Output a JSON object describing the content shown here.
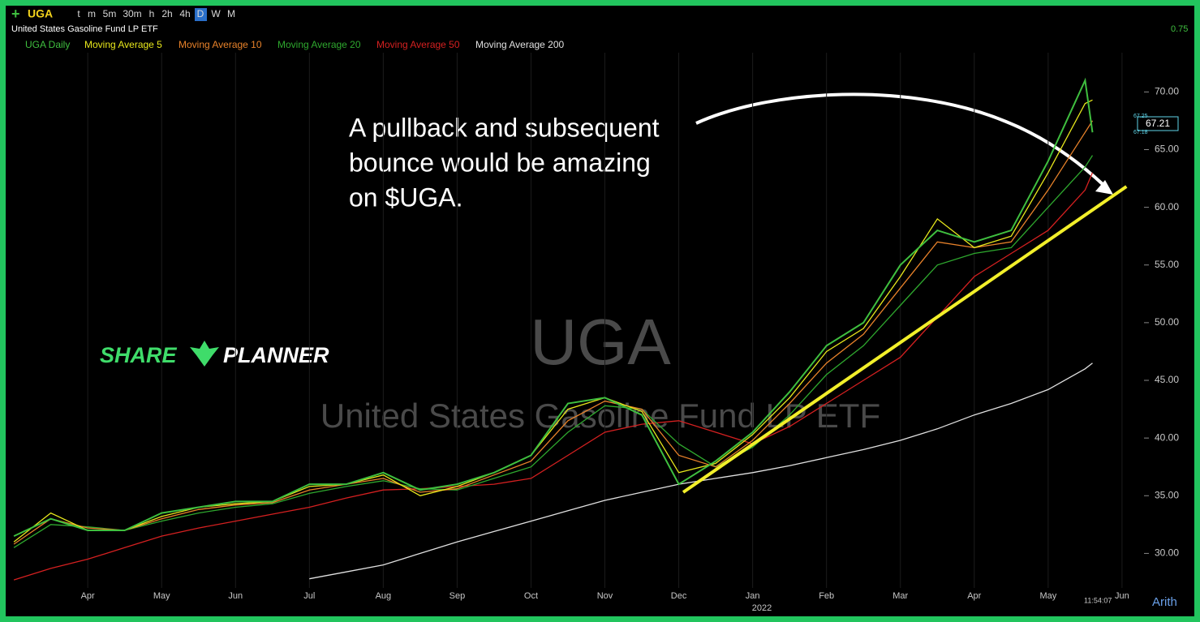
{
  "header": {
    "symbol": "UGA",
    "intervals": [
      "t",
      "m",
      "5m",
      "30m",
      "h",
      "2h",
      "4h",
      "D",
      "W",
      "M"
    ],
    "subtitle": "United States Gasoline Fund LP ETF",
    "last_price": "67.21",
    "ask": "67.25",
    "bid": "67.18",
    "change": "0.75",
    "clock": "11:54:07",
    "scale_mode": "Arith"
  },
  "logo": [
    "SHARE",
    "PLANNER"
  ],
  "chart_data": {
    "type": "line",
    "watermark": [
      "UGA",
      "United States Gasoline Fund LP ETF"
    ],
    "annotation": [
      "A pullback and subsequent",
      "bounce would be amazing",
      "on $UGA."
    ],
    "year_label": "2022",
    "x": [
      -1,
      -0.5,
      0,
      0.5,
      1,
      1.5,
      2,
      2.5,
      3,
      3.5,
      4,
      4.5,
      5,
      5.5,
      6,
      6.5,
      7,
      7.5,
      8,
      8.5,
      9,
      9.5,
      10,
      10.5,
      11,
      11.5,
      12,
      12.5,
      13,
      13.5,
      13.6
    ],
    "series": [
      {
        "name": "UGA Daily",
        "color": "#3fbf3f",
        "values": [
          31.5,
          33,
          32,
          32,
          33.5,
          34,
          34.5,
          34.5,
          36,
          36,
          37,
          35.5,
          36,
          37,
          38.5,
          43,
          43.5,
          42,
          36,
          38,
          40.5,
          44,
          48,
          50,
          55,
          58,
          57,
          58,
          64,
          71,
          66.5
        ]
      },
      {
        "name": "Moving Average 5",
        "color": "#e8e81c",
        "values": [
          31,
          33.5,
          32,
          32,
          33.2,
          34,
          34.3,
          34.5,
          35.8,
          36,
          36.8,
          35,
          35.8,
          37,
          38.5,
          42.5,
          43.5,
          42.3,
          37,
          37.8,
          40.3,
          43.5,
          47.5,
          49.5,
          54,
          59,
          56.5,
          57.5,
          63,
          69,
          69.3
        ]
      },
      {
        "name": "Moving Average 10",
        "color": "#e8822a",
        "values": [
          30.8,
          33,
          32.2,
          32,
          33,
          33.8,
          34.2,
          34.4,
          35.5,
          36,
          36.5,
          35.3,
          35.6,
          36.8,
          38,
          41.5,
          43.2,
          42.5,
          38.5,
          37.5,
          39.8,
          43,
          46.5,
          49,
          53,
          57,
          56.5,
          57,
          61.5,
          66.5,
          67.5
        ]
      },
      {
        "name": "Moving Average 20",
        "color": "#2ea82e",
        "values": [
          30.5,
          32.5,
          32.3,
          32,
          32.8,
          33.5,
          34,
          34.3,
          35.2,
          35.8,
          36.3,
          35.6,
          35.5,
          36.5,
          37.5,
          40.5,
          42.8,
          42.5,
          39.5,
          37.5,
          39.2,
          42,
          45.5,
          48,
          51.5,
          55,
          56,
          56.5,
          60,
          63.5,
          64.5
        ]
      },
      {
        "name": "Moving Average 50",
        "color": "#d42020",
        "values": [
          27.7,
          28.7,
          29.5,
          30.5,
          31.5,
          32.2,
          32.8,
          33.4,
          34,
          34.8,
          35.5,
          35.6,
          35.8,
          36,
          36.5,
          38.5,
          40.5,
          41.2,
          41.5,
          40.5,
          39.5,
          41,
          43,
          45,
          47,
          50.5,
          54,
          56,
          58,
          61.5,
          63
        ]
      },
      {
        "name": "Moving Average 200",
        "color": "#e0e0e0",
        "values": [
          null,
          null,
          null,
          null,
          null,
          null,
          null,
          null,
          27.8,
          28.4,
          29,
          30,
          31,
          31.9,
          32.8,
          33.7,
          34.6,
          35.3,
          36,
          36.5,
          37,
          37.6,
          38.3,
          39,
          39.8,
          40.8,
          42,
          43,
          44.2,
          46,
          46.5
        ]
      }
    ],
    "trendline": {
      "color": "#f2ef2a",
      "x": [
        8.06,
        14.06
      ],
      "y": [
        35.3,
        61.8
      ]
    },
    "xlim": [
      -1.1,
      14.1
    ],
    "xticks": [
      {
        "value": 0,
        "label": "Apr"
      },
      {
        "value": 1,
        "label": "May"
      },
      {
        "value": 2,
        "label": "Jun"
      },
      {
        "value": 3,
        "label": "Jul"
      },
      {
        "value": 4,
        "label": "Aug"
      },
      {
        "value": 5,
        "label": "Sep"
      },
      {
        "value": 6,
        "label": "Oct"
      },
      {
        "value": 7,
        "label": "Nov"
      },
      {
        "value": 8,
        "label": "Dec"
      },
      {
        "value": 9,
        "label": "Jan"
      },
      {
        "value": 10,
        "label": "Feb"
      },
      {
        "value": 11,
        "label": "Mar"
      },
      {
        "value": 12,
        "label": "Apr"
      },
      {
        "value": 13,
        "label": "May"
      },
      {
        "value": 14,
        "label": "Jun"
      }
    ],
    "ylim": [
      25.6,
      73.4
    ],
    "yticks": [
      {
        "value": 30,
        "label": "30.00"
      },
      {
        "value": 35,
        "label": "35.00"
      },
      {
        "value": 40,
        "label": "40.00"
      },
      {
        "value": 45,
        "label": "45.00"
      },
      {
        "value": 50,
        "label": "50.00"
      },
      {
        "value": 55,
        "label": "55.00"
      },
      {
        "value": 60,
        "label": "60.00"
      },
      {
        "value": 65,
        "label": "65.00"
      },
      {
        "value": 70,
        "label": "70.00"
      }
    ],
    "grid": true
  }
}
